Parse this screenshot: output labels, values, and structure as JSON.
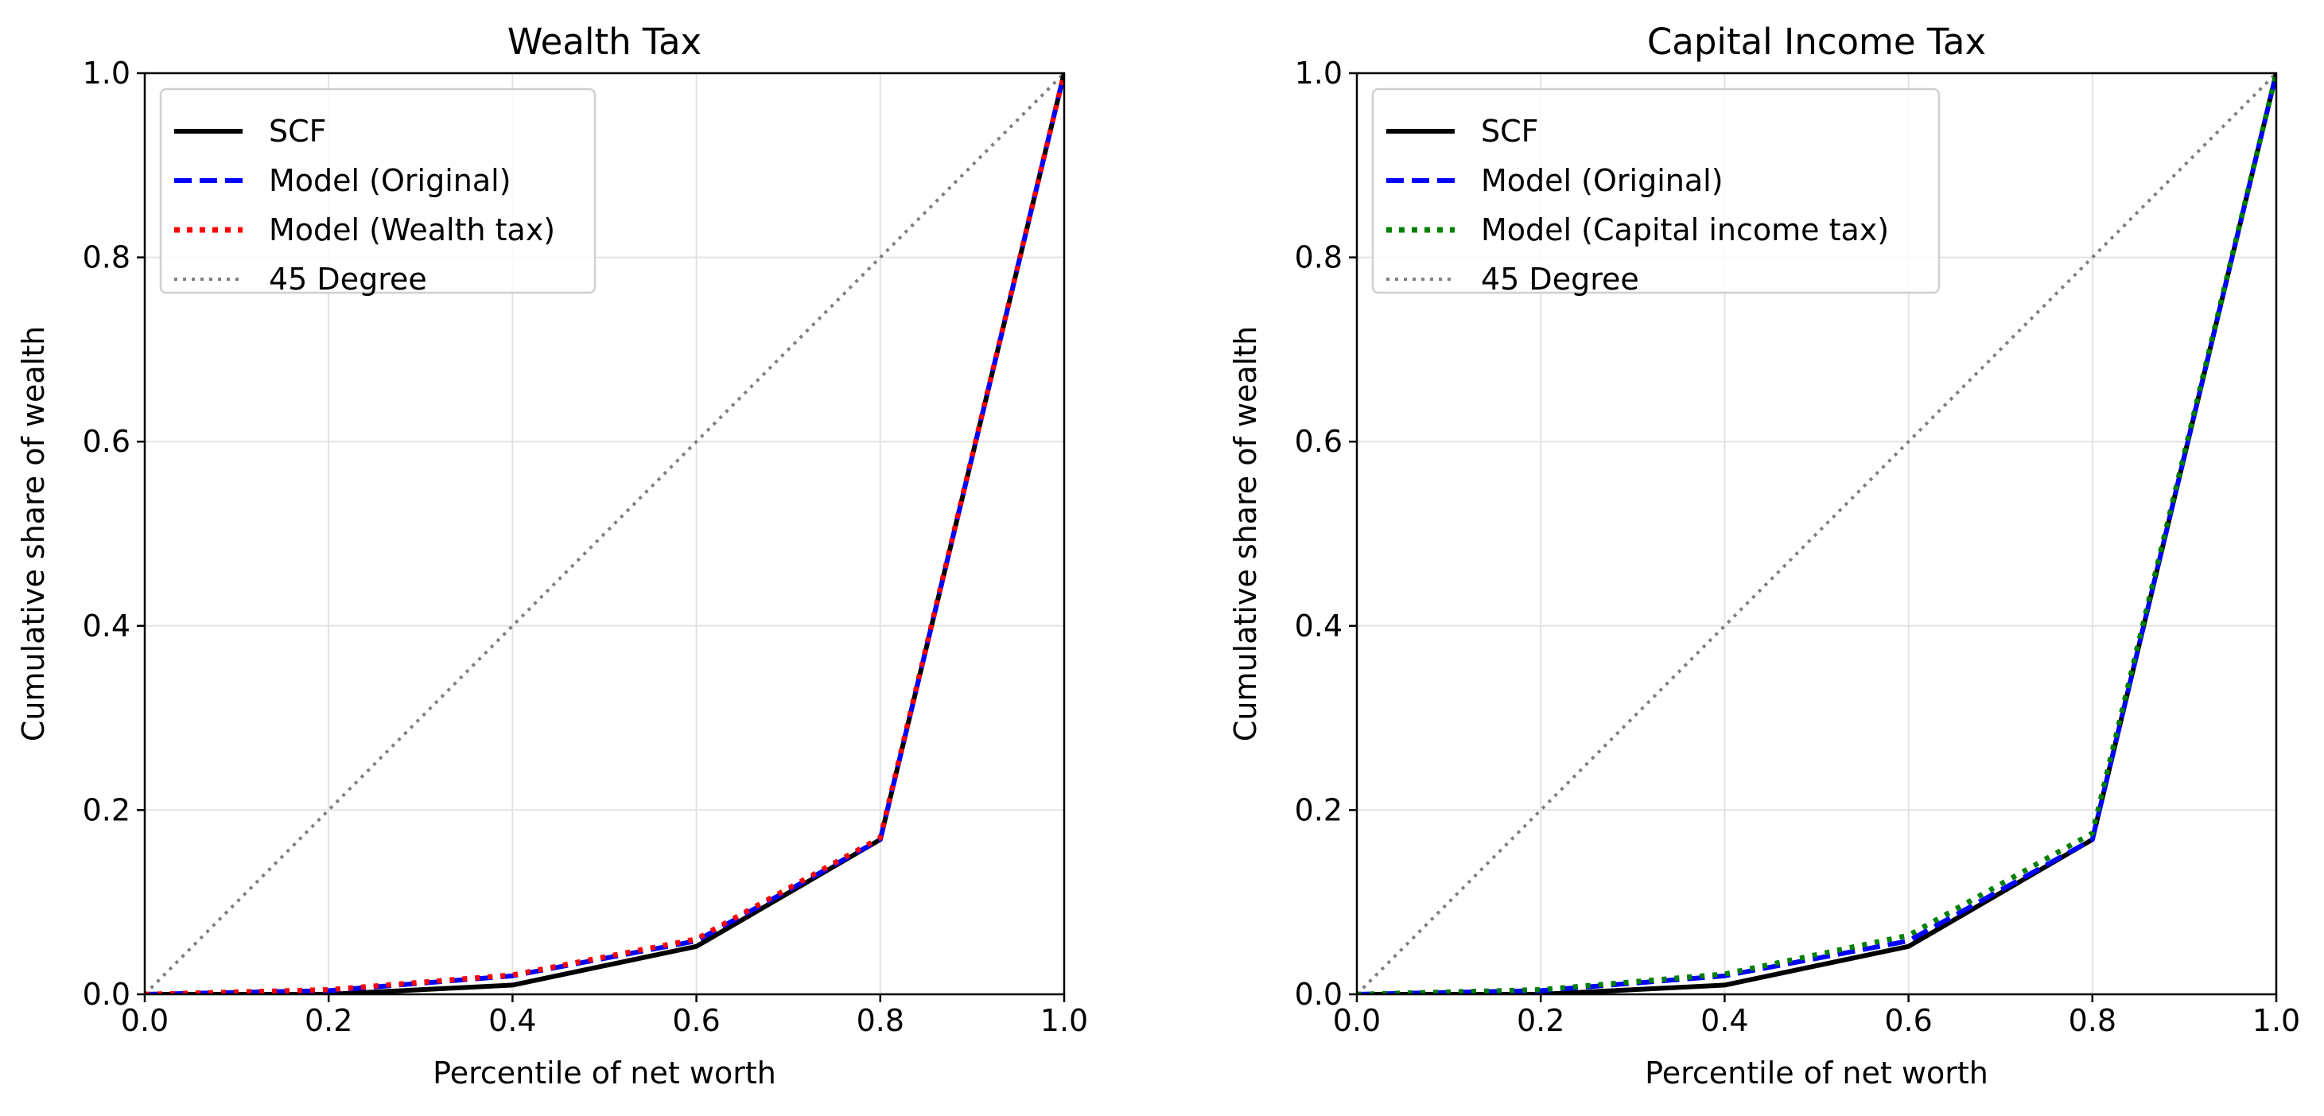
{
  "chart_data": [
    {
      "type": "line",
      "title": "Wealth Tax",
      "xlabel": "Percentile of net worth",
      "ylabel": "Cumulative share of wealth",
      "xlim": [
        0.0,
        1.0
      ],
      "ylim": [
        0.0,
        1.0
      ],
      "xticks": [
        "0.0",
        "0.2",
        "0.4",
        "0.6",
        "0.8",
        "1.0"
      ],
      "yticks": [
        "0.0",
        "0.2",
        "0.4",
        "0.6",
        "0.8",
        "1.0"
      ],
      "grid": true,
      "legend": "top-left",
      "series": [
        {
          "name": "SCF",
          "color": "#000000",
          "style": "solid",
          "x": [
            0.0,
            0.2,
            0.4,
            0.6,
            0.8,
            1.0
          ],
          "y": [
            0.0,
            0.0,
            0.01,
            0.052,
            0.168,
            1.0
          ]
        },
        {
          "name": "Model (Original)",
          "color": "#0000ff",
          "style": "dashed",
          "x": [
            0.0,
            0.2,
            0.4,
            0.6,
            0.8,
            1.0
          ],
          "y": [
            0.0,
            0.004,
            0.02,
            0.058,
            0.168,
            1.0
          ]
        },
        {
          "name": "Model (Wealth tax)",
          "color": "#ff0000",
          "style": "dotted",
          "x": [
            0.0,
            0.2,
            0.4,
            0.6,
            0.8,
            1.0
          ],
          "y": [
            0.0,
            0.005,
            0.021,
            0.06,
            0.17,
            1.0
          ]
        },
        {
          "name": "45 Degree",
          "color": "#808080",
          "style": "dotted-thin",
          "x": [
            0.0,
            1.0
          ],
          "y": [
            0.0,
            1.0
          ]
        }
      ]
    },
    {
      "type": "line",
      "title": "Capital Income Tax",
      "xlabel": "Percentile of net worth",
      "ylabel": "Cumulative share of wealth",
      "xlim": [
        0.0,
        1.0
      ],
      "ylim": [
        0.0,
        1.0
      ],
      "xticks": [
        "0.0",
        "0.2",
        "0.4",
        "0.6",
        "0.8",
        "1.0"
      ],
      "yticks": [
        "0.0",
        "0.2",
        "0.4",
        "0.6",
        "0.8",
        "1.0"
      ],
      "grid": true,
      "legend": "top-left",
      "series": [
        {
          "name": "SCF",
          "color": "#000000",
          "style": "solid",
          "x": [
            0.0,
            0.2,
            0.4,
            0.6,
            0.8,
            1.0
          ],
          "y": [
            0.0,
            0.0,
            0.01,
            0.052,
            0.168,
            1.0
          ]
        },
        {
          "name": "Model (Original)",
          "color": "#0000ff",
          "style": "dashed",
          "x": [
            0.0,
            0.2,
            0.4,
            0.6,
            0.8,
            1.0
          ],
          "y": [
            0.0,
            0.004,
            0.02,
            0.058,
            0.168,
            1.0
          ]
        },
        {
          "name": "Model (Capital income tax)",
          "color": "#008000",
          "style": "dotted",
          "x": [
            0.0,
            0.2,
            0.4,
            0.6,
            0.8,
            1.0
          ],
          "y": [
            0.0,
            0.005,
            0.022,
            0.064,
            0.175,
            1.0
          ]
        },
        {
          "name": "45 Degree",
          "color": "#808080",
          "style": "dotted-thin",
          "x": [
            0.0,
            1.0
          ],
          "y": [
            0.0,
            1.0
          ]
        }
      ]
    }
  ]
}
